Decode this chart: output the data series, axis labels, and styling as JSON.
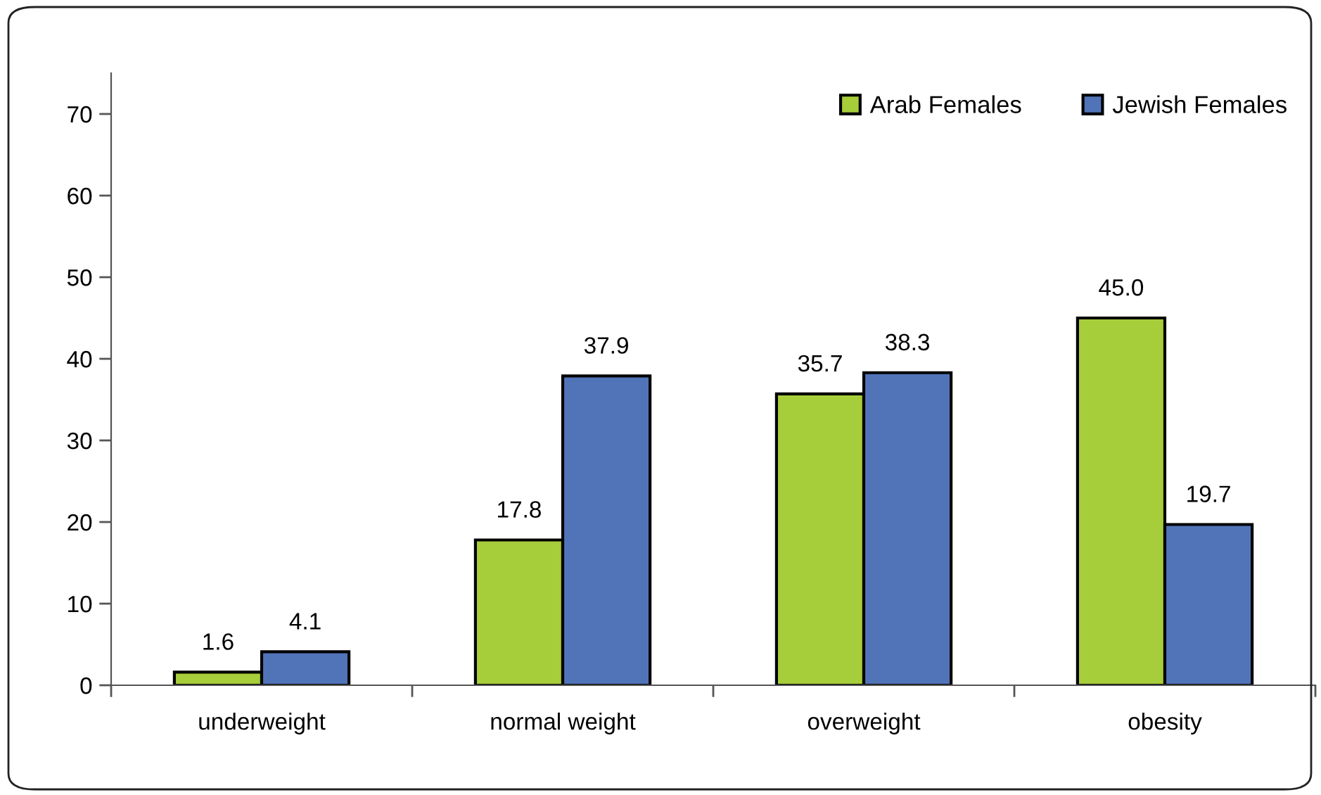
{
  "chart_data": {
    "type": "bar",
    "categories": [
      "underweight",
      "normal weight",
      "overweight",
      "obesity"
    ],
    "series": [
      {
        "name": "Arab Females",
        "color": "#a6cd3a",
        "values": [
          1.6,
          17.8,
          35.7,
          45.0
        ],
        "value_labels": [
          "1.6",
          "17.8",
          "35.7",
          "45.0"
        ]
      },
      {
        "name": "Jewish Females",
        "color": "#5174b9",
        "values": [
          4.1,
          37.9,
          38.3,
          19.7
        ],
        "value_labels": [
          "4.1",
          "37.9",
          "38.3",
          "19.7"
        ]
      }
    ],
    "ylim": [
      0,
      75
    ],
    "yticks": [
      0,
      10,
      20,
      30,
      40,
      50,
      60,
      70
    ],
    "grid": false,
    "legend": "top right"
  }
}
